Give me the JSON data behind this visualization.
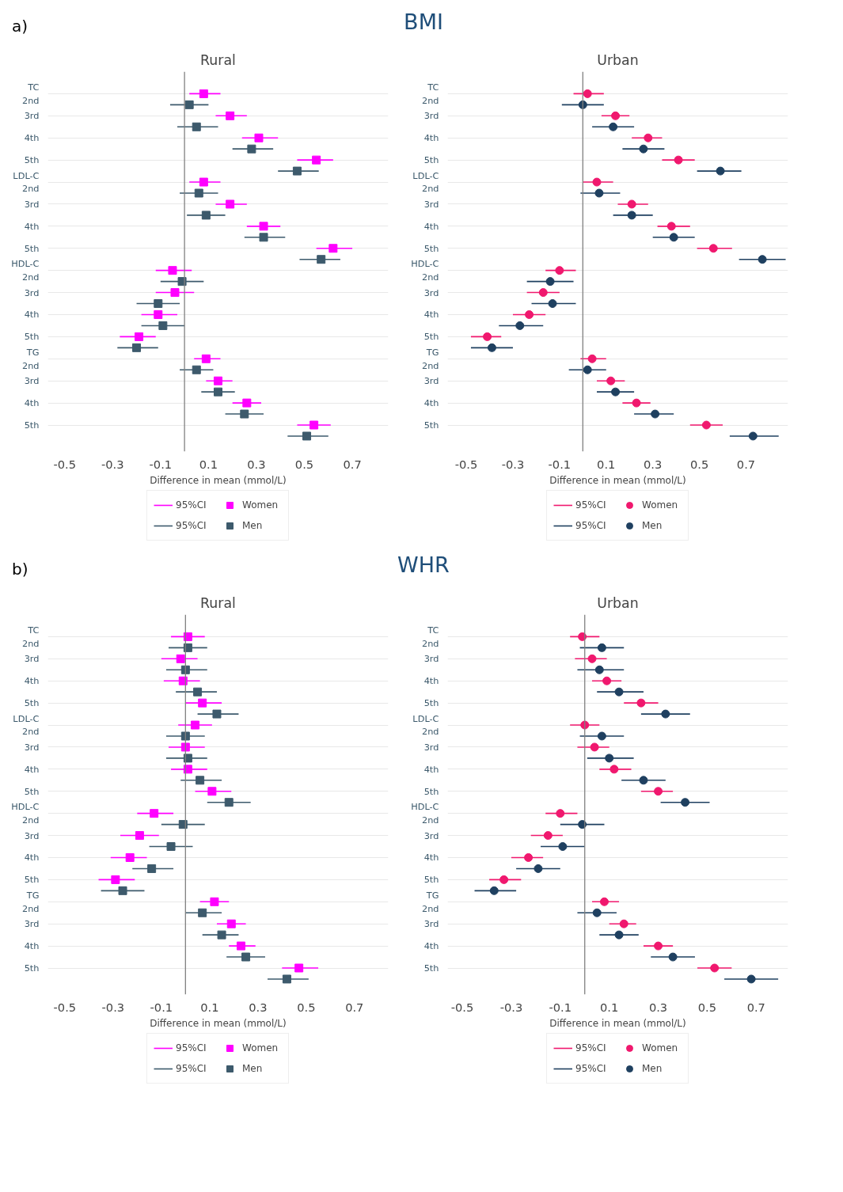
{
  "chart_data": [
    {
      "type": "scatter",
      "orientation": "horizontal",
      "title": "Rural",
      "xlabel": "Difference in mean (mmol/L)",
      "categories": [
        "TC\n2nd",
        "3rd",
        "4th",
        "5th",
        "LDL-C\n2nd",
        "3rd",
        "4th",
        "5th",
        "HDL-C\n2nd",
        "3rd",
        "4th",
        "5th",
        "TG\n2nd",
        "3rd",
        "4th",
        "5th"
      ],
      "xlim": [
        -0.57,
        0.85
      ],
      "xticks": [
        -0.5,
        -0.3,
        -0.1,
        0.1,
        0.3,
        0.5,
        0.7
      ],
      "grid": "y",
      "legend": "bottom",
      "marker": "square",
      "ref_lines": [
        {
          "axis": "x",
          "value": 0,
          "color": "#808080"
        }
      ],
      "annotations": [
        "a)",
        "BMI",
        "95%CI",
        "95%CI"
      ],
      "series": [
        {
          "name": "Women",
          "color": "#ff00ff",
          "values": [
            0.08,
            0.19,
            0.31,
            0.55,
            0.08,
            0.19,
            0.33,
            0.62,
            -0.05,
            -0.04,
            -0.11,
            -0.19,
            0.09,
            0.14,
            0.26,
            0.54
          ],
          "errors": [
            [
              0.02,
              0.15
            ],
            [
              0.13,
              0.26
            ],
            [
              0.24,
              0.39
            ],
            [
              0.47,
              0.62
            ],
            [
              0.02,
              0.15
            ],
            [
              0.13,
              0.26
            ],
            [
              0.26,
              0.4
            ],
            [
              0.55,
              0.7
            ],
            [
              -0.12,
              0.03
            ],
            [
              -0.12,
              0.04
            ],
            [
              -0.18,
              -0.03
            ],
            [
              -0.27,
              -0.12
            ],
            [
              0.04,
              0.15
            ],
            [
              0.09,
              0.2
            ],
            [
              0.2,
              0.32
            ],
            [
              0.47,
              0.61
            ]
          ]
        },
        {
          "name": "Men",
          "color": "#3d5a6c",
          "values": [
            0.02,
            0.05,
            0.28,
            0.47,
            0.06,
            0.09,
            0.33,
            0.57,
            -0.01,
            -0.11,
            -0.09,
            -0.2,
            0.05,
            0.14,
            0.25,
            0.51
          ],
          "errors": [
            [
              -0.06,
              0.1
            ],
            [
              -0.03,
              0.14
            ],
            [
              0.2,
              0.37
            ],
            [
              0.39,
              0.56
            ],
            [
              -0.02,
              0.14
            ],
            [
              0.01,
              0.17
            ],
            [
              0.25,
              0.42
            ],
            [
              0.48,
              0.65
            ],
            [
              -0.1,
              0.08
            ],
            [
              -0.2,
              -0.02
            ],
            [
              -0.18,
              0.0
            ],
            [
              -0.28,
              -0.11
            ],
            [
              -0.02,
              0.12
            ],
            [
              0.07,
              0.21
            ],
            [
              0.17,
              0.33
            ],
            [
              0.43,
              0.6
            ]
          ]
        }
      ]
    },
    {
      "type": "scatter",
      "orientation": "horizontal",
      "title": "Urban",
      "xlabel": "Difference in mean (mmol/L)",
      "categories": [
        "TC\n2nd",
        "3rd",
        "4th",
        "5th",
        "LDL-C\n2nd",
        "3rd",
        "4th",
        "5th",
        "HDL-C\n2nd",
        "3rd",
        "4th",
        "5th",
        "TG\n2nd",
        "3rd",
        "4th",
        "5th"
      ],
      "xlim": [
        -0.58,
        0.88
      ],
      "xticks": [
        -0.5,
        -0.3,
        -0.1,
        0.1,
        0.3,
        0.5,
        0.7
      ],
      "grid": "y",
      "legend": "bottom",
      "marker": "circle",
      "ref_lines": [
        {
          "axis": "x",
          "value": 0,
          "color": "#808080"
        }
      ],
      "annotations": [
        "95%CI",
        "95%CI"
      ],
      "series": [
        {
          "name": "Women",
          "color": "#f0186e",
          "values": [
            0.02,
            0.14,
            0.28,
            0.41,
            0.06,
            0.21,
            0.38,
            0.56,
            -0.1,
            -0.17,
            -0.23,
            -0.41,
            0.04,
            0.12,
            0.23,
            0.53
          ],
          "errors": [
            [
              -0.04,
              0.09
            ],
            [
              0.08,
              0.2
            ],
            [
              0.21,
              0.34
            ],
            [
              0.34,
              0.48
            ],
            [
              0.0,
              0.13
            ],
            [
              0.15,
              0.28
            ],
            [
              0.32,
              0.46
            ],
            [
              0.49,
              0.64
            ],
            [
              -0.16,
              -0.03
            ],
            [
              -0.24,
              -0.1
            ],
            [
              -0.3,
              -0.16
            ],
            [
              -0.48,
              -0.35
            ],
            [
              -0.01,
              0.1
            ],
            [
              0.06,
              0.18
            ],
            [
              0.17,
              0.29
            ],
            [
              0.46,
              0.6
            ]
          ]
        },
        {
          "name": "Men",
          "color": "#1f4060",
          "values": [
            0.0,
            0.13,
            0.26,
            0.59,
            0.07,
            0.21,
            0.39,
            0.77,
            -0.14,
            -0.13,
            -0.27,
            -0.39,
            0.02,
            0.14,
            0.31,
            0.73
          ],
          "errors": [
            [
              -0.09,
              0.09
            ],
            [
              0.04,
              0.22
            ],
            [
              0.17,
              0.35
            ],
            [
              0.49,
              0.68
            ],
            [
              -0.01,
              0.16
            ],
            [
              0.13,
              0.3
            ],
            [
              0.3,
              0.48
            ],
            [
              0.67,
              0.87
            ],
            [
              -0.24,
              -0.04
            ],
            [
              -0.22,
              -0.03
            ],
            [
              -0.36,
              -0.17
            ],
            [
              -0.48,
              -0.3
            ],
            [
              -0.06,
              0.1
            ],
            [
              0.06,
              0.22
            ],
            [
              0.22,
              0.39
            ],
            [
              0.63,
              0.84
            ]
          ]
        }
      ]
    },
    {
      "type": "scatter",
      "orientation": "horizontal",
      "title": "Rural",
      "xlabel": "Difference in mean (mmol/L)",
      "categories": [
        "TC\n2nd",
        "3rd",
        "4th",
        "5th",
        "LDL-C\n2nd",
        "3rd",
        "4th",
        "5th",
        "HDL-C\n2nd",
        "3rd",
        "4th",
        "5th",
        "TG\n2nd",
        "3rd",
        "4th",
        "5th"
      ],
      "xlim": [
        -0.57,
        0.84
      ],
      "xticks": [
        -0.5,
        -0.3,
        -0.1,
        0.1,
        0.3,
        0.5,
        0.7
      ],
      "grid": "y",
      "legend": "bottom",
      "marker": "square",
      "ref_lines": [
        {
          "axis": "x",
          "value": 0,
          "color": "#808080"
        }
      ],
      "annotations": [
        "b)",
        "WHR",
        "95%CI",
        "95%CI"
      ],
      "series": [
        {
          "name": "Women",
          "color": "#ff00ff",
          "values": [
            0.01,
            -0.02,
            -0.01,
            0.07,
            0.04,
            0.0,
            0.01,
            0.11,
            -0.13,
            -0.19,
            -0.23,
            -0.29,
            0.12,
            0.19,
            0.23,
            0.47
          ],
          "errors": [
            [
              -0.06,
              0.08
            ],
            [
              -0.1,
              0.05
            ],
            [
              -0.09,
              0.06
            ],
            [
              0.0,
              0.15
            ],
            [
              -0.03,
              0.11
            ],
            [
              -0.07,
              0.08
            ],
            [
              -0.06,
              0.09
            ],
            [
              0.04,
              0.19
            ],
            [
              -0.2,
              -0.05
            ],
            [
              -0.27,
              -0.11
            ],
            [
              -0.31,
              -0.16
            ],
            [
              -0.36,
              -0.21
            ],
            [
              0.06,
              0.18
            ],
            [
              0.13,
              0.25
            ],
            [
              0.18,
              0.29
            ],
            [
              0.4,
              0.55
            ]
          ]
        },
        {
          "name": "Men",
          "color": "#3d5a6c",
          "values": [
            0.01,
            0.0,
            0.05,
            0.13,
            0.0,
            0.01,
            0.06,
            0.18,
            -0.01,
            -0.06,
            -0.14,
            -0.26,
            0.07,
            0.15,
            0.25,
            0.42
          ],
          "errors": [
            [
              -0.07,
              0.09
            ],
            [
              -0.08,
              0.09
            ],
            [
              -0.04,
              0.13
            ],
            [
              0.05,
              0.22
            ],
            [
              -0.08,
              0.08
            ],
            [
              -0.08,
              0.09
            ],
            [
              -0.02,
              0.15
            ],
            [
              0.09,
              0.27
            ],
            [
              -0.1,
              0.08
            ],
            [
              -0.15,
              0.03
            ],
            [
              -0.22,
              -0.05
            ],
            [
              -0.35,
              -0.17
            ],
            [
              0.0,
              0.15
            ],
            [
              0.07,
              0.22
            ],
            [
              0.17,
              0.33
            ],
            [
              0.34,
              0.51
            ]
          ]
        }
      ]
    },
    {
      "type": "scatter",
      "orientation": "horizontal",
      "title": "Urban",
      "xlabel": "Difference in mean (mmol/L)",
      "categories": [
        "TC\n2nd",
        "3rd",
        "4th",
        "5th",
        "LDL-C\n2nd",
        "3rd",
        "4th",
        "5th",
        "HDL-C\n2nd",
        "3rd",
        "4th",
        "5th",
        "TG\n2nd",
        "3rd",
        "4th",
        "5th"
      ],
      "xlim": [
        -0.56,
        0.83
      ],
      "xticks": [
        -0.5,
        -0.3,
        -0.1,
        0.1,
        0.3,
        0.5,
        0.7
      ],
      "grid": "y",
      "legend": "bottom",
      "marker": "circle",
      "ref_lines": [
        {
          "axis": "x",
          "value": 0,
          "color": "#808080"
        }
      ],
      "annotations": [
        "95%CI",
        "95%CI"
      ],
      "series": [
        {
          "name": "Women",
          "color": "#f0186e",
          "values": [
            -0.01,
            0.03,
            0.09,
            0.23,
            0.0,
            0.04,
            0.12,
            0.3,
            -0.1,
            -0.15,
            -0.23,
            -0.33,
            0.08,
            0.16,
            0.3,
            0.53
          ],
          "errors": [
            [
              -0.06,
              0.06
            ],
            [
              -0.04,
              0.09
            ],
            [
              0.03,
              0.15
            ],
            [
              0.16,
              0.3
            ],
            [
              -0.06,
              0.06
            ],
            [
              -0.03,
              0.1
            ],
            [
              0.06,
              0.19
            ],
            [
              0.23,
              0.36
            ],
            [
              -0.16,
              -0.03
            ],
            [
              -0.22,
              -0.09
            ],
            [
              -0.3,
              -0.17
            ],
            [
              -0.39,
              -0.26
            ],
            [
              0.03,
              0.14
            ],
            [
              0.1,
              0.21
            ],
            [
              0.24,
              0.36
            ],
            [
              0.46,
              0.6
            ]
          ]
        },
        {
          "name": "Men",
          "color": "#1f4060",
          "values": [
            0.07,
            0.06,
            0.14,
            0.33,
            0.07,
            0.1,
            0.24,
            0.41,
            -0.01,
            -0.09,
            -0.19,
            -0.37,
            0.05,
            0.14,
            0.36,
            0.68
          ],
          "errors": [
            [
              -0.02,
              0.16
            ],
            [
              -0.03,
              0.16
            ],
            [
              0.05,
              0.24
            ],
            [
              0.23,
              0.43
            ],
            [
              -0.02,
              0.16
            ],
            [
              0.01,
              0.2
            ],
            [
              0.15,
              0.33
            ],
            [
              0.31,
              0.51
            ],
            [
              -0.1,
              0.08
            ],
            [
              -0.18,
              0.0
            ],
            [
              -0.28,
              -0.1
            ],
            [
              -0.45,
              -0.28
            ],
            [
              -0.03,
              0.13
            ],
            [
              0.06,
              0.22
            ],
            [
              0.27,
              0.45
            ],
            [
              0.57,
              0.79
            ]
          ]
        }
      ]
    }
  ]
}
